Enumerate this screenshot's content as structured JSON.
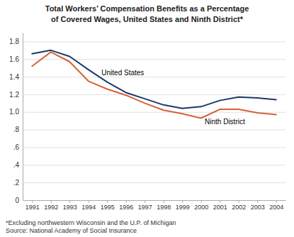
{
  "chart_data": {
    "type": "line",
    "title": "Total Workers’ Compensation Benefits as a Percentage",
    "subtitle": "of Covered Wages, United States and Ninth District*",
    "footnotes": [
      "*Excluding northwestern Wisconsin and the U.P. of Michigan",
      "Source: National Academy of Social Insurance"
    ],
    "x": [
      1991,
      1992,
      1993,
      1994,
      1995,
      1996,
      1997,
      1998,
      1999,
      2000,
      2001,
      2002,
      2003,
      2004
    ],
    "series": [
      {
        "color": "#1a3a6b",
        "values": [
          1.66,
          1.7,
          1.63,
          1.48,
          1.34,
          1.22,
          1.15,
          1.08,
          1.04,
          1.06,
          1.13,
          1.17,
          1.16,
          1.14
        ]
      },
      {
        "color": "#d4623a",
        "values": [
          1.52,
          1.68,
          1.57,
          1.35,
          1.26,
          1.19,
          1.1,
          1.02,
          0.98,
          0.93,
          1.03,
          1.03,
          0.99,
          0.97
        ]
      }
    ],
    "annotations": [
      {
        "text": "United States",
        "x": 1994.7,
        "y": 1.42
      },
      {
        "text": "Ninth District",
        "x": 2000.2,
        "y": 0.865
      }
    ],
    "xlim": [
      1990.5,
      2004.5
    ],
    "xticks": [
      1991,
      1992,
      1993,
      1994,
      1995,
      1996,
      1997,
      1998,
      1999,
      2000,
      2001,
      2002,
      2003,
      2004
    ],
    "ylim": [
      0,
      1.9
    ],
    "yticks": [
      0,
      {
        "value": 0.2,
        "label": ".2"
      },
      {
        "value": 0.4,
        "label": ".4"
      },
      {
        "value": 0.6,
        "label": ".6"
      },
      {
        "value": 0.8,
        "label": ".8"
      },
      {
        "value": 1.0,
        "label": "1.0"
      },
      1.2,
      1.4,
      1.6,
      1.8
    ],
    "grid": true
  }
}
